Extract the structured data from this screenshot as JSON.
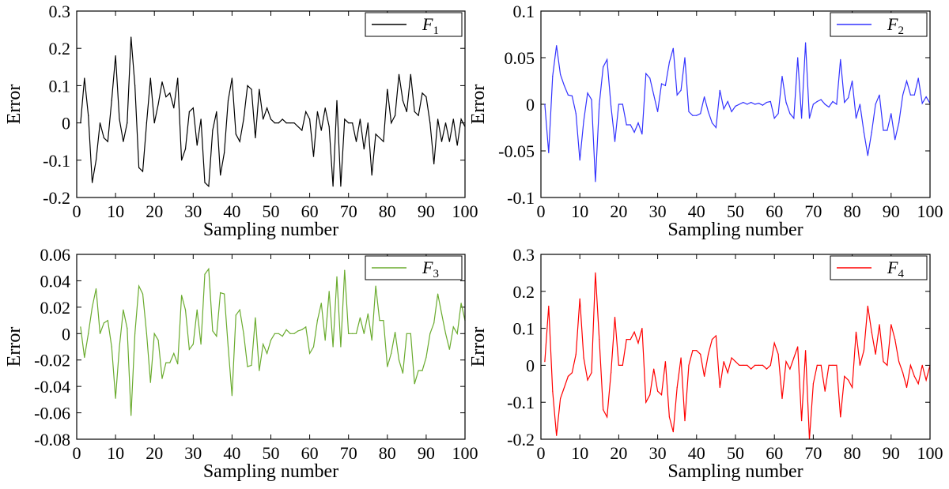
{
  "chart_data": [
    {
      "type": "line",
      "xlabel": "Sampling number",
      "ylabel": "Error",
      "xlim": [
        0,
        100
      ],
      "ylim": [
        -0.2,
        0.3
      ],
      "xticks": [
        "0",
        "10",
        "20",
        "30",
        "40",
        "50",
        "60",
        "70",
        "80",
        "90",
        "100"
      ],
      "yticks": [
        "-0.2",
        "-0.1",
        "0",
        "0.1",
        "0.2",
        "0.3"
      ],
      "legend": {
        "base": "F",
        "sub": "1",
        "position": "top-right"
      },
      "color": "#000000",
      "series": [
        {
          "name": "F1",
          "x": [
            1,
            2,
            3,
            4,
            5,
            6,
            7,
            8,
            9,
            10,
            11,
            12,
            13,
            14,
            15,
            16,
            17,
            18,
            19,
            20,
            21,
            22,
            23,
            24,
            25,
            26,
            27,
            28,
            29,
            30,
            31,
            32,
            33,
            34,
            35,
            36,
            37,
            38,
            39,
            40,
            41,
            42,
            43,
            44,
            45,
            46,
            47,
            48,
            49,
            50,
            51,
            52,
            53,
            54,
            55,
            56,
            57,
            58,
            59,
            60,
            61,
            62,
            63,
            64,
            65,
            66,
            67,
            68,
            69,
            70,
            71,
            72,
            73,
            74,
            75,
            76,
            77,
            78,
            79,
            80,
            81,
            82,
            83,
            84,
            85,
            86,
            87,
            88,
            89,
            90,
            91,
            92,
            93,
            94,
            95,
            96,
            97,
            98,
            99,
            100
          ],
          "values": [
            0.0,
            0.12,
            0.02,
            -0.16,
            -0.1,
            0.0,
            -0.04,
            -0.05,
            0.06,
            0.18,
            0.01,
            -0.05,
            0.0,
            0.23,
            0.1,
            -0.12,
            -0.13,
            0.0,
            0.12,
            0.0,
            0.05,
            0.11,
            0.07,
            0.08,
            0.04,
            0.12,
            -0.1,
            -0.07,
            0.03,
            0.04,
            -0.06,
            0.01,
            -0.16,
            -0.17,
            -0.02,
            0.03,
            -0.14,
            -0.08,
            0.06,
            0.12,
            -0.03,
            -0.05,
            0.01,
            0.1,
            0.09,
            -0.04,
            0.09,
            0.01,
            0.04,
            0.01,
            0.0,
            0.0,
            0.01,
            0.0,
            0.0,
            0.0,
            -0.01,
            -0.02,
            0.03,
            0.01,
            -0.09,
            0.03,
            -0.02,
            0.04,
            -0.01,
            -0.17,
            0.06,
            -0.17,
            0.01,
            0.0,
            0.0,
            -0.05,
            0.01,
            -0.07,
            0.0,
            -0.14,
            -0.03,
            -0.04,
            -0.05,
            0.09,
            0.0,
            0.02,
            0.13,
            0.06,
            0.03,
            0.13,
            0.03,
            0.02,
            0.08,
            0.07,
            0.0,
            -0.11,
            0.01,
            -0.05,
            0.0,
            -0.05,
            0.01,
            -0.06,
            0.01,
            -0.01
          ]
        }
      ]
    },
    {
      "type": "line",
      "xlabel": "Sampling number",
      "ylabel": "Error",
      "xlim": [
        0,
        100
      ],
      "ylim": [
        -0.1,
        0.1
      ],
      "xticks": [
        "0",
        "10",
        "20",
        "30",
        "40",
        "50",
        "60",
        "70",
        "80",
        "90",
        "100"
      ],
      "yticks": [
        "-0.1",
        "-0.05",
        "0",
        "0.05",
        "0.1"
      ],
      "legend": {
        "base": "F",
        "sub": "2",
        "position": "top-right"
      },
      "color": "#3333ff",
      "series": [
        {
          "name": "F2",
          "x": [
            1,
            2,
            3,
            4,
            5,
            6,
            7,
            8,
            9,
            10,
            11,
            12,
            13,
            14,
            15,
            16,
            17,
            18,
            19,
            20,
            21,
            22,
            23,
            24,
            25,
            26,
            27,
            28,
            29,
            30,
            31,
            32,
            33,
            34,
            35,
            36,
            37,
            38,
            39,
            40,
            41,
            42,
            43,
            44,
            45,
            46,
            47,
            48,
            49,
            50,
            51,
            52,
            53,
            54,
            55,
            56,
            57,
            58,
            59,
            60,
            61,
            62,
            63,
            64,
            65,
            66,
            67,
            68,
            69,
            70,
            71,
            72,
            73,
            74,
            75,
            76,
            77,
            78,
            79,
            80,
            81,
            82,
            83,
            84,
            85,
            86,
            87,
            88,
            89,
            90,
            91,
            92,
            93,
            94,
            95,
            96,
            97,
            98,
            99,
            100
          ],
          "values": [
            0.0,
            -0.052,
            0.03,
            0.063,
            0.032,
            0.02,
            0.01,
            0.009,
            -0.01,
            -0.06,
            -0.018,
            0.012,
            0.005,
            -0.083,
            0.0,
            0.04,
            0.048,
            -0.002,
            -0.04,
            0.0,
            0.0,
            -0.022,
            -0.022,
            -0.03,
            -0.02,
            -0.032,
            0.033,
            0.028,
            0.01,
            -0.008,
            0.022,
            0.02,
            0.045,
            0.06,
            0.01,
            0.015,
            0.05,
            -0.008,
            -0.012,
            -0.012,
            -0.01,
            0.008,
            -0.008,
            -0.02,
            -0.025,
            0.015,
            -0.005,
            0.003,
            -0.008,
            -0.002,
            0.0,
            0.002,
            0.0,
            0.002,
            0.0,
            0.001,
            -0.001,
            0.002,
            0.003,
            -0.015,
            -0.01,
            0.03,
            0.002,
            -0.01,
            -0.015,
            0.05,
            -0.015,
            0.066,
            -0.015,
            0.0,
            0.003,
            0.005,
            0.0,
            -0.003,
            0.003,
            0.0,
            0.048,
            0.002,
            0.007,
            0.025,
            -0.015,
            0.0,
            -0.03,
            -0.055,
            -0.03,
            0.0,
            0.01,
            -0.028,
            -0.028,
            -0.01,
            -0.038,
            -0.02,
            0.01,
            0.025,
            0.01,
            0.01,
            0.028,
            0.001,
            0.008,
            0.001
          ]
        }
      ]
    },
    {
      "type": "line",
      "xlabel": "Sampling number",
      "ylabel": "Error",
      "xlim": [
        0,
        100
      ],
      "ylim": [
        -0.08,
        0.06
      ],
      "xticks": [
        "0",
        "10",
        "20",
        "30",
        "40",
        "50",
        "60",
        "70",
        "80",
        "90",
        "100"
      ],
      "yticks": [
        "-0.08",
        "-0.06",
        "-0.04",
        "-0.02",
        "0",
        "0.02",
        "0.04",
        "0.06"
      ],
      "legend": {
        "base": "F",
        "sub": "3",
        "position": "top-right"
      },
      "color": "#6aab2e",
      "series": [
        {
          "name": "F3",
          "x": [
            1,
            2,
            3,
            4,
            5,
            6,
            7,
            8,
            9,
            10,
            11,
            12,
            13,
            14,
            15,
            16,
            17,
            18,
            19,
            20,
            21,
            22,
            23,
            24,
            25,
            26,
            27,
            28,
            29,
            30,
            31,
            32,
            33,
            34,
            35,
            36,
            37,
            38,
            39,
            40,
            41,
            42,
            43,
            44,
            45,
            46,
            47,
            48,
            49,
            50,
            51,
            52,
            53,
            54,
            55,
            56,
            57,
            58,
            59,
            60,
            61,
            62,
            63,
            64,
            65,
            66,
            67,
            68,
            69,
            70,
            71,
            72,
            73,
            74,
            75,
            76,
            77,
            78,
            79,
            80,
            81,
            82,
            83,
            84,
            85,
            86,
            87,
            88,
            89,
            90,
            91,
            92,
            93,
            94,
            95,
            96,
            97,
            98,
            99,
            100
          ],
          "values": [
            0.005,
            -0.018,
            0.0,
            0.02,
            0.034,
            0.0,
            0.008,
            0.01,
            -0.01,
            -0.049,
            -0.01,
            0.018,
            0.004,
            -0.062,
            0.0,
            0.036,
            0.03,
            0.0,
            -0.037,
            0.0,
            -0.005,
            -0.034,
            -0.022,
            -0.022,
            -0.015,
            -0.023,
            0.029,
            0.018,
            -0.012,
            -0.008,
            0.018,
            -0.008,
            0.045,
            0.049,
            0.002,
            -0.002,
            0.031,
            0.03,
            -0.01,
            -0.047,
            0.014,
            0.018,
            0.0,
            -0.025,
            -0.024,
            0.012,
            -0.028,
            -0.008,
            -0.015,
            -0.005,
            0.0,
            0.0,
            -0.002,
            0.003,
            0.0,
            0.0,
            0.002,
            0.003,
            0.005,
            -0.015,
            -0.01,
            0.01,
            0.023,
            -0.005,
            0.032,
            -0.01,
            0.043,
            -0.01,
            0.048,
            0.0,
            0.0,
            0.0,
            0.012,
            0.0,
            0.015,
            -0.005,
            0.036,
            0.01,
            0.01,
            -0.025,
            -0.015,
            0.001,
            -0.02,
            -0.03,
            0.0,
            0.0,
            -0.038,
            -0.028,
            -0.028,
            -0.018,
            0.0,
            0.008,
            0.03,
            0.015,
            0.0,
            -0.012,
            0.005,
            0.0,
            0.023,
            0.01
          ]
        }
      ]
    },
    {
      "type": "line",
      "xlabel": "Sampling number",
      "ylabel": "Error",
      "xlim": [
        0,
        100
      ],
      "ylim": [
        -0.2,
        0.3
      ],
      "xticks": [
        "0",
        "10",
        "20",
        "30",
        "40",
        "50",
        "60",
        "70",
        "80",
        "90",
        "100"
      ],
      "yticks": [
        "-0.2",
        "-0.1",
        "0",
        "0.1",
        "0.2",
        "0.3"
      ],
      "legend": {
        "base": "F",
        "sub": "4",
        "position": "top-right"
      },
      "color": "#ff0000",
      "series": [
        {
          "name": "F4",
          "x": [
            1,
            2,
            3,
            4,
            5,
            6,
            7,
            8,
            9,
            10,
            11,
            12,
            13,
            14,
            15,
            16,
            17,
            18,
            19,
            20,
            21,
            22,
            23,
            24,
            25,
            26,
            27,
            28,
            29,
            30,
            31,
            32,
            33,
            34,
            35,
            36,
            37,
            38,
            39,
            40,
            41,
            42,
            43,
            44,
            45,
            46,
            47,
            48,
            49,
            50,
            51,
            52,
            53,
            54,
            55,
            56,
            57,
            58,
            59,
            60,
            61,
            62,
            63,
            64,
            65,
            66,
            67,
            68,
            69,
            70,
            71,
            72,
            73,
            74,
            75,
            76,
            77,
            78,
            79,
            80,
            81,
            82,
            83,
            84,
            85,
            86,
            87,
            88,
            89,
            90,
            91,
            92,
            93,
            94,
            95,
            96,
            97,
            98,
            99,
            100
          ],
          "values": [
            0.01,
            0.16,
            -0.07,
            -0.19,
            -0.09,
            -0.06,
            -0.03,
            -0.02,
            0.03,
            0.18,
            0.02,
            -0.04,
            -0.02,
            0.25,
            0.07,
            -0.12,
            -0.14,
            -0.02,
            0.13,
            0.0,
            0.0,
            0.07,
            0.07,
            0.09,
            0.06,
            0.1,
            -0.1,
            -0.08,
            -0.01,
            -0.07,
            -0.08,
            0.01,
            -0.14,
            -0.18,
            -0.06,
            0.02,
            -0.15,
            0.0,
            0.04,
            0.04,
            0.03,
            -0.03,
            0.03,
            0.07,
            0.08,
            -0.06,
            0.01,
            -0.02,
            0.02,
            0.01,
            0.0,
            0.0,
            0.0,
            -0.01,
            0.0,
            0.0,
            0.0,
            -0.01,
            0.0,
            0.06,
            0.03,
            -0.09,
            0.01,
            -0.01,
            0.02,
            0.05,
            -0.15,
            0.04,
            -0.2,
            -0.05,
            0.0,
            0.0,
            -0.07,
            0.0,
            0.0,
            0.0,
            -0.14,
            -0.03,
            -0.04,
            -0.06,
            0.09,
            0.0,
            0.04,
            0.16,
            0.09,
            0.03,
            0.11,
            0.01,
            0.0,
            0.11,
            0.07,
            0.01,
            -0.02,
            -0.06,
            0.0,
            -0.03,
            -0.05,
            0.0,
            -0.04,
            0.0
          ]
        }
      ]
    }
  ]
}
